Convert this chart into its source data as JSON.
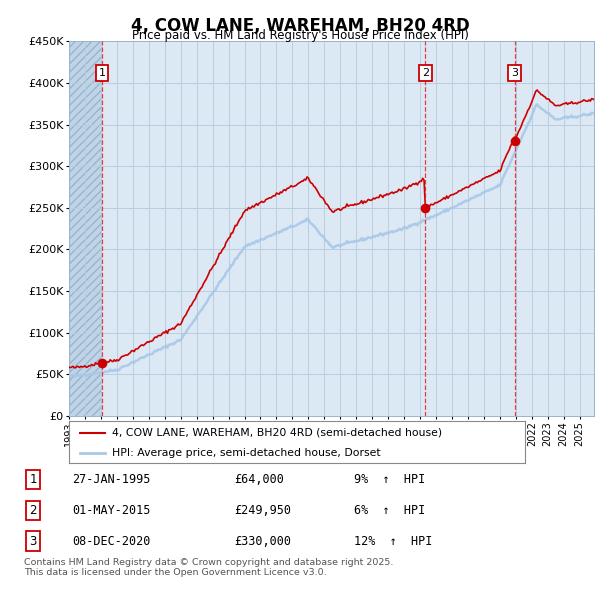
{
  "title": "4, COW LANE, WAREHAM, BH20 4RD",
  "subtitle": "Price paid vs. HM Land Registry's House Price Index (HPI)",
  "ylim": [
    0,
    450000
  ],
  "yticks": [
    0,
    50000,
    100000,
    150000,
    200000,
    250000,
    300000,
    350000,
    400000,
    450000
  ],
  "ytick_labels": [
    "£0",
    "£50K",
    "£100K",
    "£150K",
    "£200K",
    "£250K",
    "£300K",
    "£350K",
    "£400K",
    "£450K"
  ],
  "xlim_start": 1993.0,
  "xlim_end": 2025.9,
  "background_color": "#ffffff",
  "plot_bg_color": "#dce9f5",
  "hatch_bg_color": "#c0d4e8",
  "grid_color": "#b8cfe0",
  "sale_color": "#cc0000",
  "hpi_color": "#a8c8e8",
  "vline_color": "#dd2222",
  "sale_events": [
    {
      "year": 1995.07,
      "price": 64000,
      "label": "1",
      "date": "27-JAN-1995",
      "pct": "9%",
      "dir": "↑"
    },
    {
      "year": 2015.33,
      "price": 249950,
      "label": "2",
      "date": "01-MAY-2015",
      "pct": "6%",
      "dir": "↑"
    },
    {
      "year": 2020.92,
      "price": 330000,
      "label": "3",
      "date": "08-DEC-2020",
      "pct": "12%",
      "dir": "↑"
    }
  ],
  "legend_entry_red": "4, COW LANE, WAREHAM, BH20 4RD (semi-detached house)",
  "legend_entry_blue": "HPI: Average price, semi-detached house, Dorset",
  "footnote": "Contains HM Land Registry data © Crown copyright and database right 2025.\nThis data is licensed under the Open Government Licence v3.0."
}
